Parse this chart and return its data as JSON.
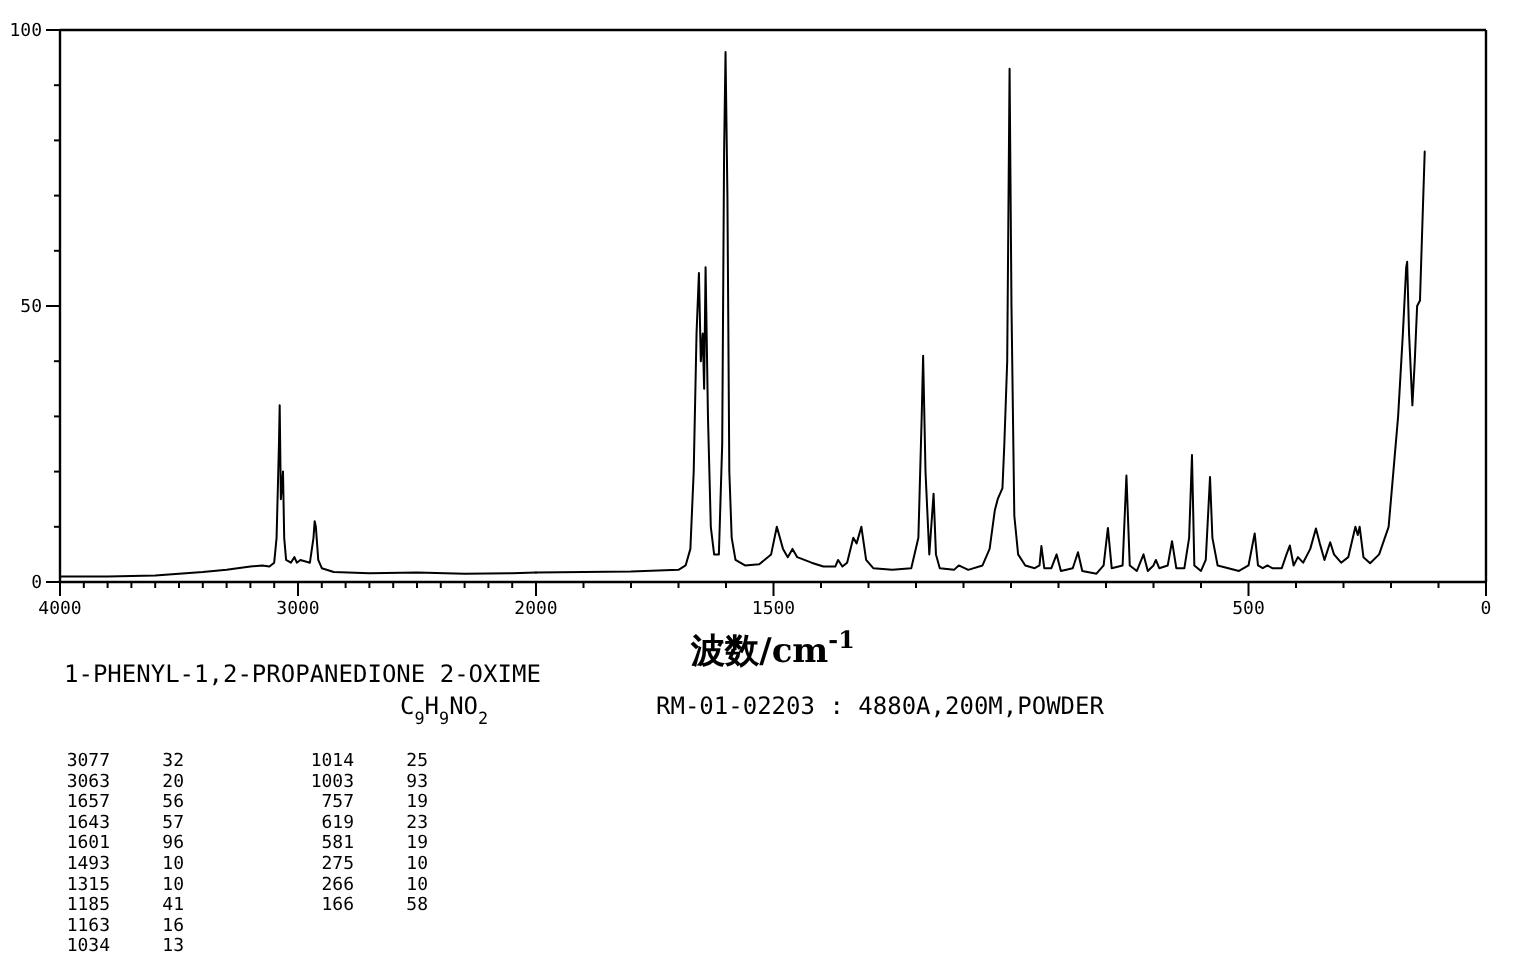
{
  "chart_data": [
    {
      "type": "line",
      "title": "1-PHENYL-1,2-PROPANEDIONE 2-OXIME",
      "subtitle": "C$_{9}$H$_{9}$NO$_{2}$",
      "annotations": [
        "RM-01-02203 : 4880A,200M,POWDER",
        "3077",
        "32",
        "3063",
        "20",
        "1657",
        "56",
        "1643",
        "57",
        "1601",
        "96",
        "1493",
        "10",
        "1315",
        "10",
        "1185",
        "41",
        "1163",
        "16",
        "1034",
        "13",
        "1014",
        "25",
        "1003",
        "93",
        "757",
        "19",
        "619",
        "23",
        "581",
        "19",
        "275",
        "10",
        "266",
        "10",
        "166",
        "58"
      ],
      "series": [
        {
          "color": "#000000",
          "x": [
            4000,
            3800,
            3600,
            3400,
            3300,
            3200,
            3150,
            3120,
            3100,
            3090,
            3080,
            3077,
            3072,
            3063,
            3058,
            3050,
            3030,
            3015,
            3005,
            2990,
            2950,
            2935,
            2930,
            2925,
            2915,
            2900,
            2850,
            2700,
            2500,
            2300,
            2100,
            2000
          ],
          "values": [
            1.0,
            1.0,
            1.2,
            1.8,
            2.2,
            2.8,
            3.0,
            2.8,
            3.5,
            8,
            25,
            32,
            15,
            20,
            8,
            4,
            3.5,
            4.5,
            3.5,
            4,
            3.5,
            8,
            11,
            10,
            4,
            2.5,
            1.8,
            1.6,
            1.7,
            1.5,
            1.6,
            1.7
          ]
        }
      ],
      "xlim": [
        4000,
        2000
      ],
      "xticks": [
        4000,
        {
          "value": 3900,
          "label": null
        },
        {
          "value": 3800,
          "label": null
        },
        {
          "value": 3700,
          "label": null
        },
        {
          "value": 3600,
          "label": null
        },
        {
          "value": 3500,
          "label": null
        },
        {
          "value": 3400,
          "label": null
        },
        {
          "value": 3300,
          "label": null
        },
        {
          "value": 3200,
          "label": null
        },
        {
          "value": 3100,
          "label": null
        },
        3000,
        {
          "value": 2900,
          "label": null
        },
        {
          "value": 2800,
          "label": null
        },
        {
          "value": 2700,
          "label": null
        },
        {
          "value": 2600,
          "label": null
        },
        {
          "value": 2500,
          "label": null
        },
        {
          "value": 2400,
          "label": null
        },
        {
          "value": 2300,
          "label": null
        },
        {
          "value": 2200,
          "label": null
        },
        {
          "value": 2100,
          "label": null
        },
        2000
      ],
      "ylim": [
        0,
        100
      ],
      "yticks": [
        0,
        {
          "value": 10,
          "label": null
        },
        {
          "value": 20,
          "label": null
        },
        {
          "value": 30,
          "label": null
        },
        {
          "value": 40,
          "label": null
        },
        50,
        {
          "value": 60,
          "label": null
        },
        {
          "value": 70,
          "label": null
        },
        {
          "value": 80,
          "label": null
        },
        {
          "value": 90,
          "label": null
        },
        100
      ]
    },
    {
      "type": "line",
      "xlabel": "波数/cm$^{-1}$",
      "series": [
        {
          "color": "#000000",
          "x": [
            2000,
            1900,
            1800,
            1700,
            1685,
            1675,
            1668,
            1662,
            1657,
            1653,
            1649,
            1646,
            1643,
            1638,
            1632,
            1625,
            1615,
            1608,
            1604,
            1601,
            1597,
            1593,
            1588,
            1580,
            1560,
            1530,
            1505,
            1493,
            1480,
            1470,
            1460,
            1450,
            1420,
            1395,
            1370,
            1364,
            1355,
            1345,
            1332,
            1325,
            1315,
            1305,
            1290,
            1250,
            1210,
            1195,
            1188,
            1185,
            1180,
            1172,
            1163,
            1158,
            1150,
            1120,
            1110,
            1090,
            1060,
            1045,
            1034,
            1028,
            1018,
            1014,
            1008,
            1003,
            999,
            993,
            985,
            970,
            950,
            940,
            936,
            930,
            915,
            904,
            895,
            870,
            859,
            850,
            820,
            805,
            796,
            788,
            765,
            757,
            750,
            735,
            721,
            712,
            700,
            695,
            688,
            670,
            661,
            652,
            635,
            625,
            619,
            614,
            600,
            590,
            581,
            576,
            565,
            520,
            500,
            487,
            480,
            470,
            460,
            450,
            430,
            420,
            413,
            405,
            396,
            385,
            370,
            358,
            350,
            340,
            328,
            320,
            305,
            290,
            275,
            270,
            266,
            258,
            244,
            225,
            205,
            195,
            185,
            175,
            168,
            166,
            162,
            155,
            150,
            145,
            139,
            135,
            129
          ],
          "values": [
            1.7,
            1.8,
            1.9,
            2.2,
            3,
            6,
            20,
            45,
            56,
            40,
            45,
            35,
            57,
            30,
            10,
            5,
            5,
            25,
            78,
            96,
            70,
            20,
            8,
            4,
            3,
            3.2,
            5,
            10,
            6,
            4.5,
            6,
            4.5,
            3.5,
            2.8,
            2.8,
            4,
            2.8,
            3.5,
            8,
            7,
            10,
            4,
            2.5,
            2.2,
            2.5,
            8,
            30,
            41,
            20,
            5,
            16,
            5,
            2.5,
            2.2,
            3,
            2.2,
            3,
            6,
            13,
            15,
            17,
            25,
            40,
            93,
            50,
            12,
            5,
            3,
            2.5,
            3,
            6.5,
            2.5,
            2.5,
            5,
            2,
            2.5,
            5.4,
            2,
            1.5,
            3,
            9.8,
            2.5,
            3,
            19.3,
            3,
            2,
            5,
            2,
            3,
            4,
            2.5,
            3,
            7.4,
            2.5,
            2.5,
            8,
            23,
            3,
            2,
            4,
            19,
            8,
            3,
            2,
            3,
            8.8,
            3,
            2.5,
            3,
            2.5,
            2.5,
            5,
            6.6,
            3,
            4.5,
            3.5,
            6,
            9.7,
            7,
            4,
            7.2,
            5,
            3.5,
            4.5,
            10,
            8.5,
            10,
            4.5,
            3.4,
            5,
            10,
            20,
            30,
            45,
            57,
            58,
            45,
            32,
            40,
            50,
            51,
            62,
            78
          ]
        }
      ],
      "xlim": [
        2000,
        0
      ],
      "xticks": [
        {
          "value": 2000,
          "label": null
        },
        {
          "value": 1900,
          "label": null
        },
        {
          "value": 1800,
          "label": null
        },
        {
          "value": 1700,
          "label": null
        },
        {
          "value": 1600,
          "label": null
        },
        1500,
        {
          "value": 1400,
          "label": null
        },
        {
          "value": 1300,
          "label": null
        },
        {
          "value": 1200,
          "label": null
        },
        {
          "value": 1100,
          "label": null
        },
        {
          "value": 1000,
          "label": null
        },
        {
          "value": 900,
          "label": null
        },
        {
          "value": 800,
          "label": null
        },
        {
          "value": 700,
          "label": null
        },
        {
          "value": 600,
          "label": null
        },
        500,
        {
          "value": 400,
          "label": null
        },
        {
          "value": 300,
          "label": null
        },
        {
          "value": 200,
          "label": null
        },
        {
          "value": 100,
          "label": null
        },
        0
      ],
      "ylim": [
        0,
        100
      ],
      "tick_labels": "x"
    }
  ]
}
